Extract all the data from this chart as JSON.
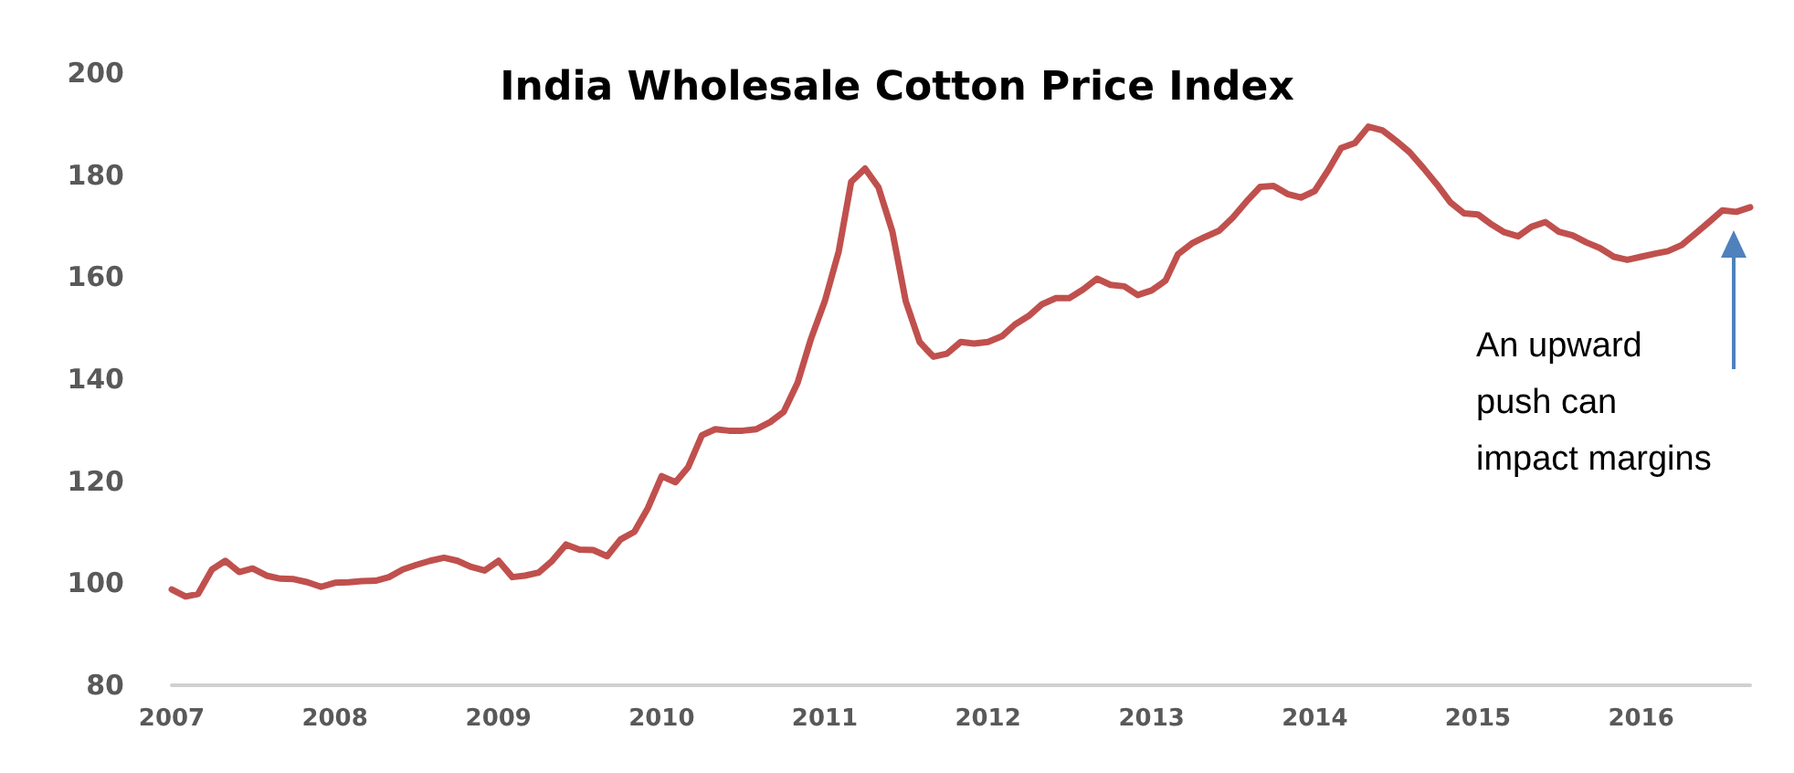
{
  "chart_data": {
    "type": "line",
    "title": "India Wholesale Cotton Price Index",
    "x": [
      "2007-01",
      "2007-02",
      "2007-03",
      "2007-04",
      "2007-05",
      "2007-06",
      "2007-07",
      "2007-08",
      "2007-09",
      "2007-10",
      "2007-11",
      "2007-12",
      "2008-01",
      "2008-02",
      "2008-03",
      "2008-04",
      "2008-05",
      "2008-06",
      "2008-07",
      "2008-08",
      "2008-09",
      "2008-10",
      "2008-11",
      "2008-12",
      "2009-01",
      "2009-02",
      "2009-03",
      "2009-04",
      "2009-05",
      "2009-06",
      "2009-07",
      "2009-08",
      "2009-09",
      "2009-10",
      "2009-11",
      "2009-12",
      "2010-01",
      "2010-02",
      "2010-03",
      "2010-04",
      "2010-05",
      "2010-06",
      "2010-07",
      "2010-08",
      "2010-09",
      "2010-10",
      "2010-11",
      "2010-12",
      "2011-01",
      "2011-02",
      "2011-03",
      "2011-04",
      "2011-05",
      "2011-06",
      "2011-07",
      "2011-08",
      "2011-09",
      "2011-10",
      "2011-11",
      "2011-12",
      "2012-01",
      "2012-02",
      "2012-03",
      "2012-04",
      "2012-05",
      "2012-06",
      "2012-07",
      "2012-08",
      "2012-09",
      "2012-10",
      "2012-11",
      "2012-12",
      "2013-01",
      "2013-02",
      "2013-03",
      "2013-04",
      "2013-05",
      "2013-06",
      "2013-07",
      "2013-08",
      "2013-09",
      "2013-10",
      "2013-11",
      "2013-12",
      "2014-01",
      "2014-02",
      "2014-03",
      "2014-04",
      "2014-05",
      "2014-06",
      "2014-07",
      "2014-08",
      "2014-09",
      "2014-10",
      "2014-11",
      "2014-12",
      "2015-01",
      "2015-02",
      "2015-03",
      "2015-04",
      "2015-05",
      "2015-06",
      "2015-07",
      "2015-08",
      "2015-09",
      "2015-10",
      "2015-11",
      "2015-12",
      "2016-01",
      "2016-02",
      "2016-03",
      "2016-04",
      "2016-05",
      "2016-06",
      "2016-07",
      "2016-08",
      "2016-09"
    ],
    "series": [
      {
        "color": "#c0504d",
        "values": [
          98.8,
          97.4,
          97.9,
          102.7,
          104.4,
          102.2,
          102.9,
          101.5,
          100.9,
          100.8,
          100.2,
          99.3,
          100.1,
          100.2,
          100.4,
          100.5,
          101.2,
          102.7,
          103.6,
          104.4,
          105,
          104.4,
          103.2,
          102.5,
          104.4,
          101.2,
          101.5,
          102.1,
          104.4,
          107.6,
          106.6,
          106.5,
          105.3,
          108.6,
          110.1,
          114.7,
          121,
          119.8,
          122.7,
          129,
          130.2,
          129.9,
          129.9,
          130.2,
          131.6,
          133.6,
          139.3,
          147.9,
          155.3,
          165,
          178.7,
          181.3,
          177.6,
          169,
          155.3,
          147.3,
          144.4,
          145,
          147.3,
          147,
          147.3,
          148.4,
          150.7,
          152.4,
          154.7,
          155.9,
          155.9,
          157.6,
          159.7,
          158.5,
          158.2,
          156.5,
          157.4,
          159.3,
          164.5,
          166.6,
          167.9,
          169.1,
          171.6,
          174.8,
          177.7,
          177.9,
          176.3,
          175.6,
          176.9,
          181.1,
          185.3,
          186.3,
          189.5,
          188.8,
          186.8,
          184.5,
          181.4,
          178.2,
          174.6,
          172.5,
          172.3,
          170.3,
          168.8,
          168,
          169.9,
          170.8,
          168.9,
          168.2,
          166.8,
          165.7,
          164,
          163.4,
          164,
          164.6,
          165.1,
          166.3,
          168.5,
          170.8,
          173.1,
          172.8,
          173.7
        ]
      }
    ],
    "xlim": [
      "2007-01",
      "2016-09"
    ],
    "xticks": [
      {
        "value": "2007-01",
        "label": "2007"
      },
      {
        "value": "2008-01",
        "label": "2008"
      },
      {
        "value": "2009-01",
        "label": "2009"
      },
      {
        "value": "2010-01",
        "label": "2010"
      },
      {
        "value": "2011-01",
        "label": "2011"
      },
      {
        "value": "2012-01",
        "label": "2012"
      },
      {
        "value": "2013-01",
        "label": "2013"
      },
      {
        "value": "2014-01",
        "label": "2014"
      },
      {
        "value": "2015-01",
        "label": "2015"
      },
      {
        "value": "2016-01",
        "label": "2016"
      }
    ],
    "ylim": [
      80,
      200
    ],
    "yticks": [
      80,
      100,
      120,
      140,
      160,
      180,
      200
    ],
    "grid": false,
    "marker": "none",
    "line_style": "solid",
    "annotations": [
      "An upward\npush can\nimpact margins"
    ]
  }
}
